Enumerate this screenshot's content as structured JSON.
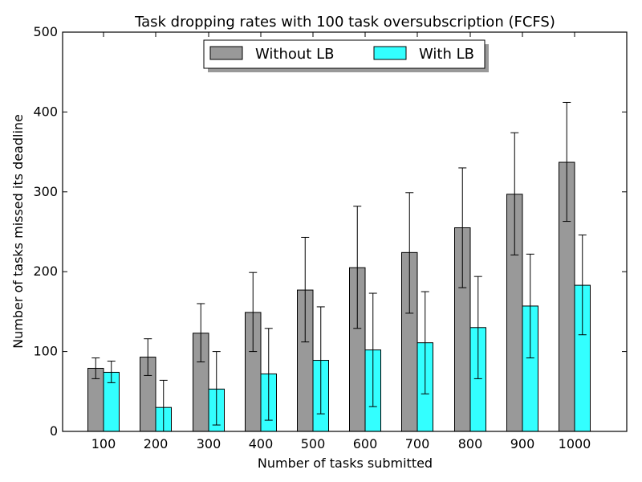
{
  "chart_data": {
    "type": "bar",
    "title": "Task dropping rates with 100 task oversubscription (FCFS)",
    "xlabel": "Number of tasks submitted",
    "ylabel": "Number of tasks missed its deadline",
    "categories": [
      "100",
      "200",
      "300",
      "400",
      "500",
      "600",
      "700",
      "800",
      "900",
      "1000"
    ],
    "ylim": [
      0,
      500
    ],
    "yticks": [
      0,
      100,
      200,
      300,
      400,
      500
    ],
    "grid": false,
    "legend_position": "top-center",
    "series": [
      {
        "name": "Without LB",
        "color": "#999999",
        "values": [
          79,
          93,
          123,
          149,
          177,
          205,
          224,
          255,
          297,
          337
        ],
        "error_low": [
          66,
          70,
          87,
          100,
          112,
          129,
          148,
          180,
          221,
          263
        ],
        "error_high": [
          92,
          116,
          160,
          199,
          243,
          282,
          299,
          330,
          374,
          412
        ]
      },
      {
        "name": "With LB",
        "color": "#33ffff",
        "values": [
          74,
          30,
          53,
          72,
          89,
          102,
          111,
          130,
          157,
          183
        ],
        "error_low": [
          61,
          0,
          8,
          14,
          22,
          31,
          47,
          66,
          92,
          121
        ],
        "error_high": [
          88,
          64,
          100,
          129,
          156,
          173,
          175,
          194,
          222,
          246
        ]
      }
    ]
  }
}
